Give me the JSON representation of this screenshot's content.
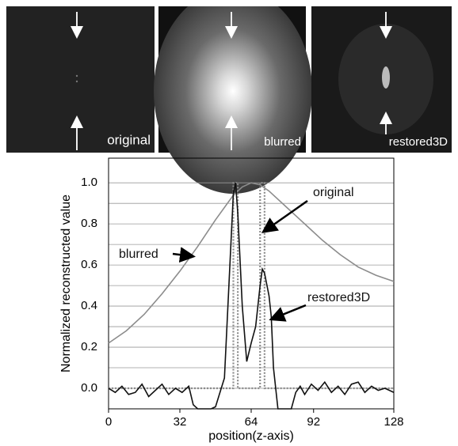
{
  "panels": [
    {
      "label": "original"
    },
    {
      "label": "blurred"
    },
    {
      "label": "restored3D"
    }
  ],
  "chart_data": {
    "type": "line",
    "xlabel": "position(z-axis)",
    "ylabel": "Normalized reconstructed value",
    "xlim": [
      0,
      128
    ],
    "xticks": [
      0,
      32,
      64,
      92,
      128
    ],
    "ylim": [
      -0.1,
      1.12
    ],
    "yticks": [
      {
        "value": 0,
        "label": "0.0"
      },
      0.2,
      0.4,
      0.6,
      0.8,
      {
        "value": 1,
        "label": "1.0"
      }
    ],
    "minor_yticks": [
      0.1,
      0.3,
      0.5,
      0.7,
      0.9
    ],
    "grid": true,
    "series": [
      {
        "name": "blurred",
        "color": "#8c8c8c",
        "style": "solid",
        "x": [
          0,
          8,
          16,
          24,
          32,
          40,
          48,
          56,
          60,
          64,
          68,
          72,
          80,
          88,
          96,
          104,
          112,
          120,
          128
        ],
        "values": [
          0.22,
          0.28,
          0.36,
          0.46,
          0.57,
          0.69,
          0.82,
          0.94,
          0.98,
          1.0,
          0.99,
          0.96,
          0.88,
          0.8,
          0.72,
          0.65,
          0.59,
          0.55,
          0.52
        ]
      },
      {
        "name": "original",
        "color": "#8c8c8c",
        "style": "dotted",
        "x": [
          0,
          56,
          56,
          58,
          58,
          68,
          68,
          70,
          70,
          128
        ],
        "values": [
          0,
          0,
          1,
          1,
          0,
          0,
          1,
          1,
          0,
          0
        ]
      },
      {
        "name": "restored3D",
        "color": "#111111",
        "style": "solid",
        "x": [
          0,
          3,
          6,
          9,
          12,
          15,
          18,
          21,
          24,
          27,
          30,
          33,
          36,
          38,
          40,
          44,
          46,
          48,
          52,
          54,
          56,
          57,
          58,
          60,
          62,
          64,
          66,
          68,
          69,
          70,
          72,
          73,
          74,
          76,
          80,
          82,
          84,
          86,
          88,
          91,
          94,
          97,
          100,
          103,
          106,
          109,
          112,
          115,
          118,
          121,
          124,
          128
        ],
        "values": [
          0,
          -0.02,
          0.01,
          -0.03,
          -0.02,
          0.02,
          -0.04,
          -0.01,
          0.02,
          -0.03,
          0,
          -0.02,
          0.01,
          -0.08,
          -0.1,
          -0.1,
          -0.1,
          -0.09,
          0.05,
          0.5,
          0.95,
          1.0,
          0.85,
          0.4,
          0.13,
          0.22,
          0.3,
          0.5,
          0.58,
          0.56,
          0.45,
          0.35,
          0.1,
          -0.1,
          -0.1,
          -0.1,
          -0.02,
          0.01,
          -0.03,
          0.02,
          -0.01,
          0.03,
          -0.02,
          0.01,
          -0.03,
          0.02,
          0.03,
          -0.02,
          0.01,
          -0.01,
          0,
          -0.02
        ]
      }
    ],
    "annotations": [
      {
        "text": "original"
      },
      {
        "text": "blurred"
      },
      {
        "text": "restored3D"
      }
    ]
  }
}
